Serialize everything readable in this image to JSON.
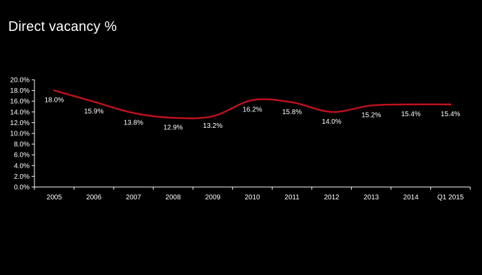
{
  "chart_data": {
    "type": "line",
    "title": "Direct vacancy %",
    "categories": [
      "2005",
      "2006",
      "2007",
      "2008",
      "2009",
      "2010",
      "2011",
      "2012",
      "2013",
      "2014",
      "Q1 2015"
    ],
    "series": [
      {
        "values": [
          18.0,
          15.9,
          13.8,
          12.9,
          13.2,
          16.2,
          15.8,
          14.0,
          15.2,
          15.4,
          15.4
        ],
        "labels": [
          "18.0%",
          "15.9%",
          "13.8%",
          "12.9%",
          "13.2%",
          "16.2%",
          "15.8%",
          "14.0%",
          "15.2%",
          "15.4%",
          "15.4%"
        ]
      }
    ],
    "y_ticks": [
      "0.0%",
      "2.0%",
      "4.0%",
      "6.0%",
      "8.0%",
      "10.0%",
      "12.0%",
      "14.0%",
      "16.0%",
      "18.0%",
      "20.0%"
    ],
    "ylim": [
      0,
      20
    ],
    "xlabel": "",
    "ylabel": "",
    "grid": false,
    "legend": "none",
    "smooth": true
  },
  "colors": {
    "background": "#000000",
    "line": "#c0101e",
    "text": "#ffffff",
    "axis": "#ffffff"
  }
}
